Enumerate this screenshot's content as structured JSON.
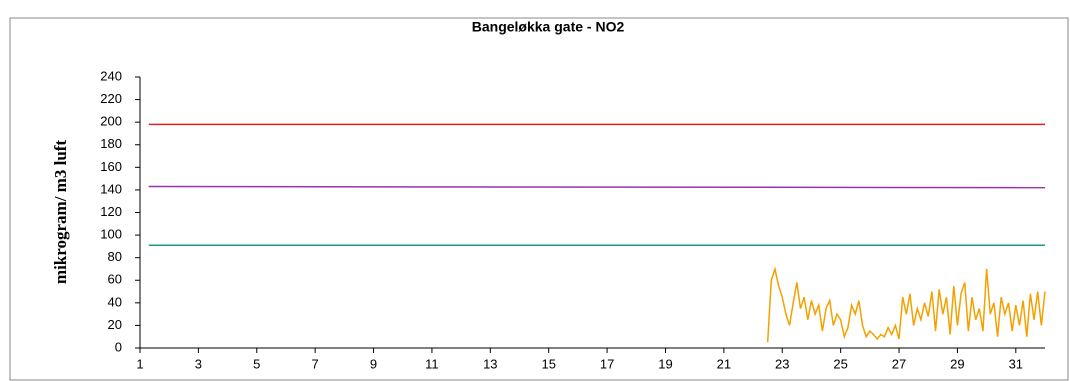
{
  "chart_data": {
    "type": "line",
    "title": "Bangeløkka gate - NO2",
    "y_label": "mikrogram/ m3 luft",
    "xlim": [
      1,
      32
    ],
    "xticks": [
      1,
      3,
      5,
      7,
      9,
      11,
      13,
      15,
      17,
      19,
      21,
      23,
      25,
      27,
      29,
      31
    ],
    "ylim": [
      0,
      240
    ],
    "yticks": [
      0,
      20,
      40,
      60,
      80,
      100,
      120,
      140,
      160,
      180,
      200,
      220,
      240
    ],
    "grid": false,
    "series": [
      {
        "color": "#e02020",
        "x": [
          1.3,
          32
        ],
        "values": [
          198,
          198
        ]
      },
      {
        "color": "#9933aa",
        "x": [
          1.3,
          32
        ],
        "values": [
          143,
          142
        ]
      },
      {
        "color": "#1a9a8a",
        "x": [
          1.3,
          32
        ],
        "values": [
          91,
          91
        ]
      },
      {
        "color": "#f5a000",
        "x": [
          22.5,
          22.625,
          22.75,
          22.875,
          23,
          23.125,
          23.25,
          23.375,
          23.5,
          23.625,
          23.75,
          23.875,
          24,
          24.125,
          24.25,
          24.375,
          24.5,
          24.625,
          24.75,
          24.875,
          25,
          25.125,
          25.25,
          25.375,
          25.5,
          25.625,
          25.75,
          25.875,
          26,
          26.125,
          26.25,
          26.375,
          26.5,
          26.625,
          26.75,
          26.875,
          27,
          27.125,
          27.25,
          27.375,
          27.5,
          27.625,
          27.75,
          27.875,
          28,
          28.125,
          28.25,
          28.375,
          28.5,
          28.625,
          28.75,
          28.875,
          29,
          29.125,
          29.25,
          29.375,
          29.5,
          29.625,
          29.75,
          29.875,
          30,
          30.125,
          30.25,
          30.375,
          30.5,
          30.625,
          30.75,
          30.875,
          31,
          31.125,
          31.25,
          31.375,
          31.5,
          31.625,
          31.75,
          31.875,
          32
        ],
        "values": [
          5,
          60,
          70,
          55,
          45,
          30,
          20,
          40,
          58,
          35,
          45,
          25,
          42,
          30,
          38,
          15,
          35,
          42,
          20,
          30,
          25,
          10,
          18,
          38,
          30,
          42,
          20,
          10,
          15,
          12,
          8,
          12,
          10,
          18,
          12,
          20,
          8,
          45,
          30,
          48,
          20,
          35,
          25,
          40,
          28,
          50,
          15,
          52,
          30,
          45,
          12,
          55,
          20,
          48,
          58,
          15,
          45,
          25,
          35,
          15,
          70,
          30,
          40,
          10,
          45,
          30,
          40,
          15,
          38,
          20,
          42,
          10,
          48,
          25,
          50,
          20,
          50
        ]
      }
    ]
  }
}
